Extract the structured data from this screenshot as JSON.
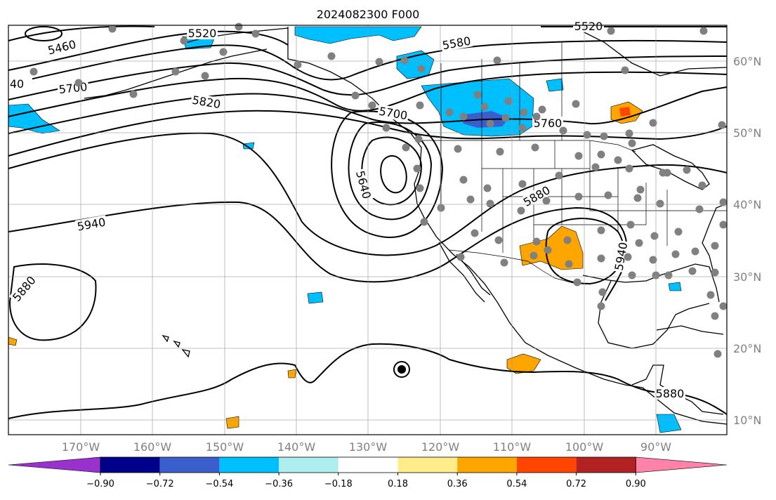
{
  "title": "2024082300 F000",
  "longitude_labels": [
    "170°W",
    "160°W",
    "150°W",
    "140°W",
    "130°W",
    "120°W",
    "110°W",
    "100°W",
    "90°W"
  ],
  "latitude_labels": [
    "60°N",
    "50°N",
    "40°N",
    "30°N",
    "20°N",
    "10°N"
  ],
  "contour_labels": [
    "5460",
    "5520",
    "5580",
    "5520",
    "5700",
    "5820",
    "5700",
    "5640",
    "5760",
    "5880",
    "5940",
    "5940",
    "5880",
    "5880",
    "40"
  ],
  "colorbar": {
    "ticks": [
      "−0.90",
      "−0.72",
      "−0.54",
      "−0.36",
      "−0.18",
      "0.18",
      "0.36",
      "0.54",
      "0.72",
      "0.90"
    ],
    "colors": [
      "#9932cc",
      "#00008b",
      "#3a5fcd",
      "#00bfff",
      "#afeeee",
      "#ffffff",
      "#ffec8b",
      "#ffa500",
      "#ff4500",
      "#b22222",
      "#ff82ab"
    ]
  },
  "colors": {
    "contour": "#000000",
    "station": "#808080",
    "grid": "#999999",
    "coast": "#000000"
  },
  "marker_icon": "tropical-cyclone-icon"
}
